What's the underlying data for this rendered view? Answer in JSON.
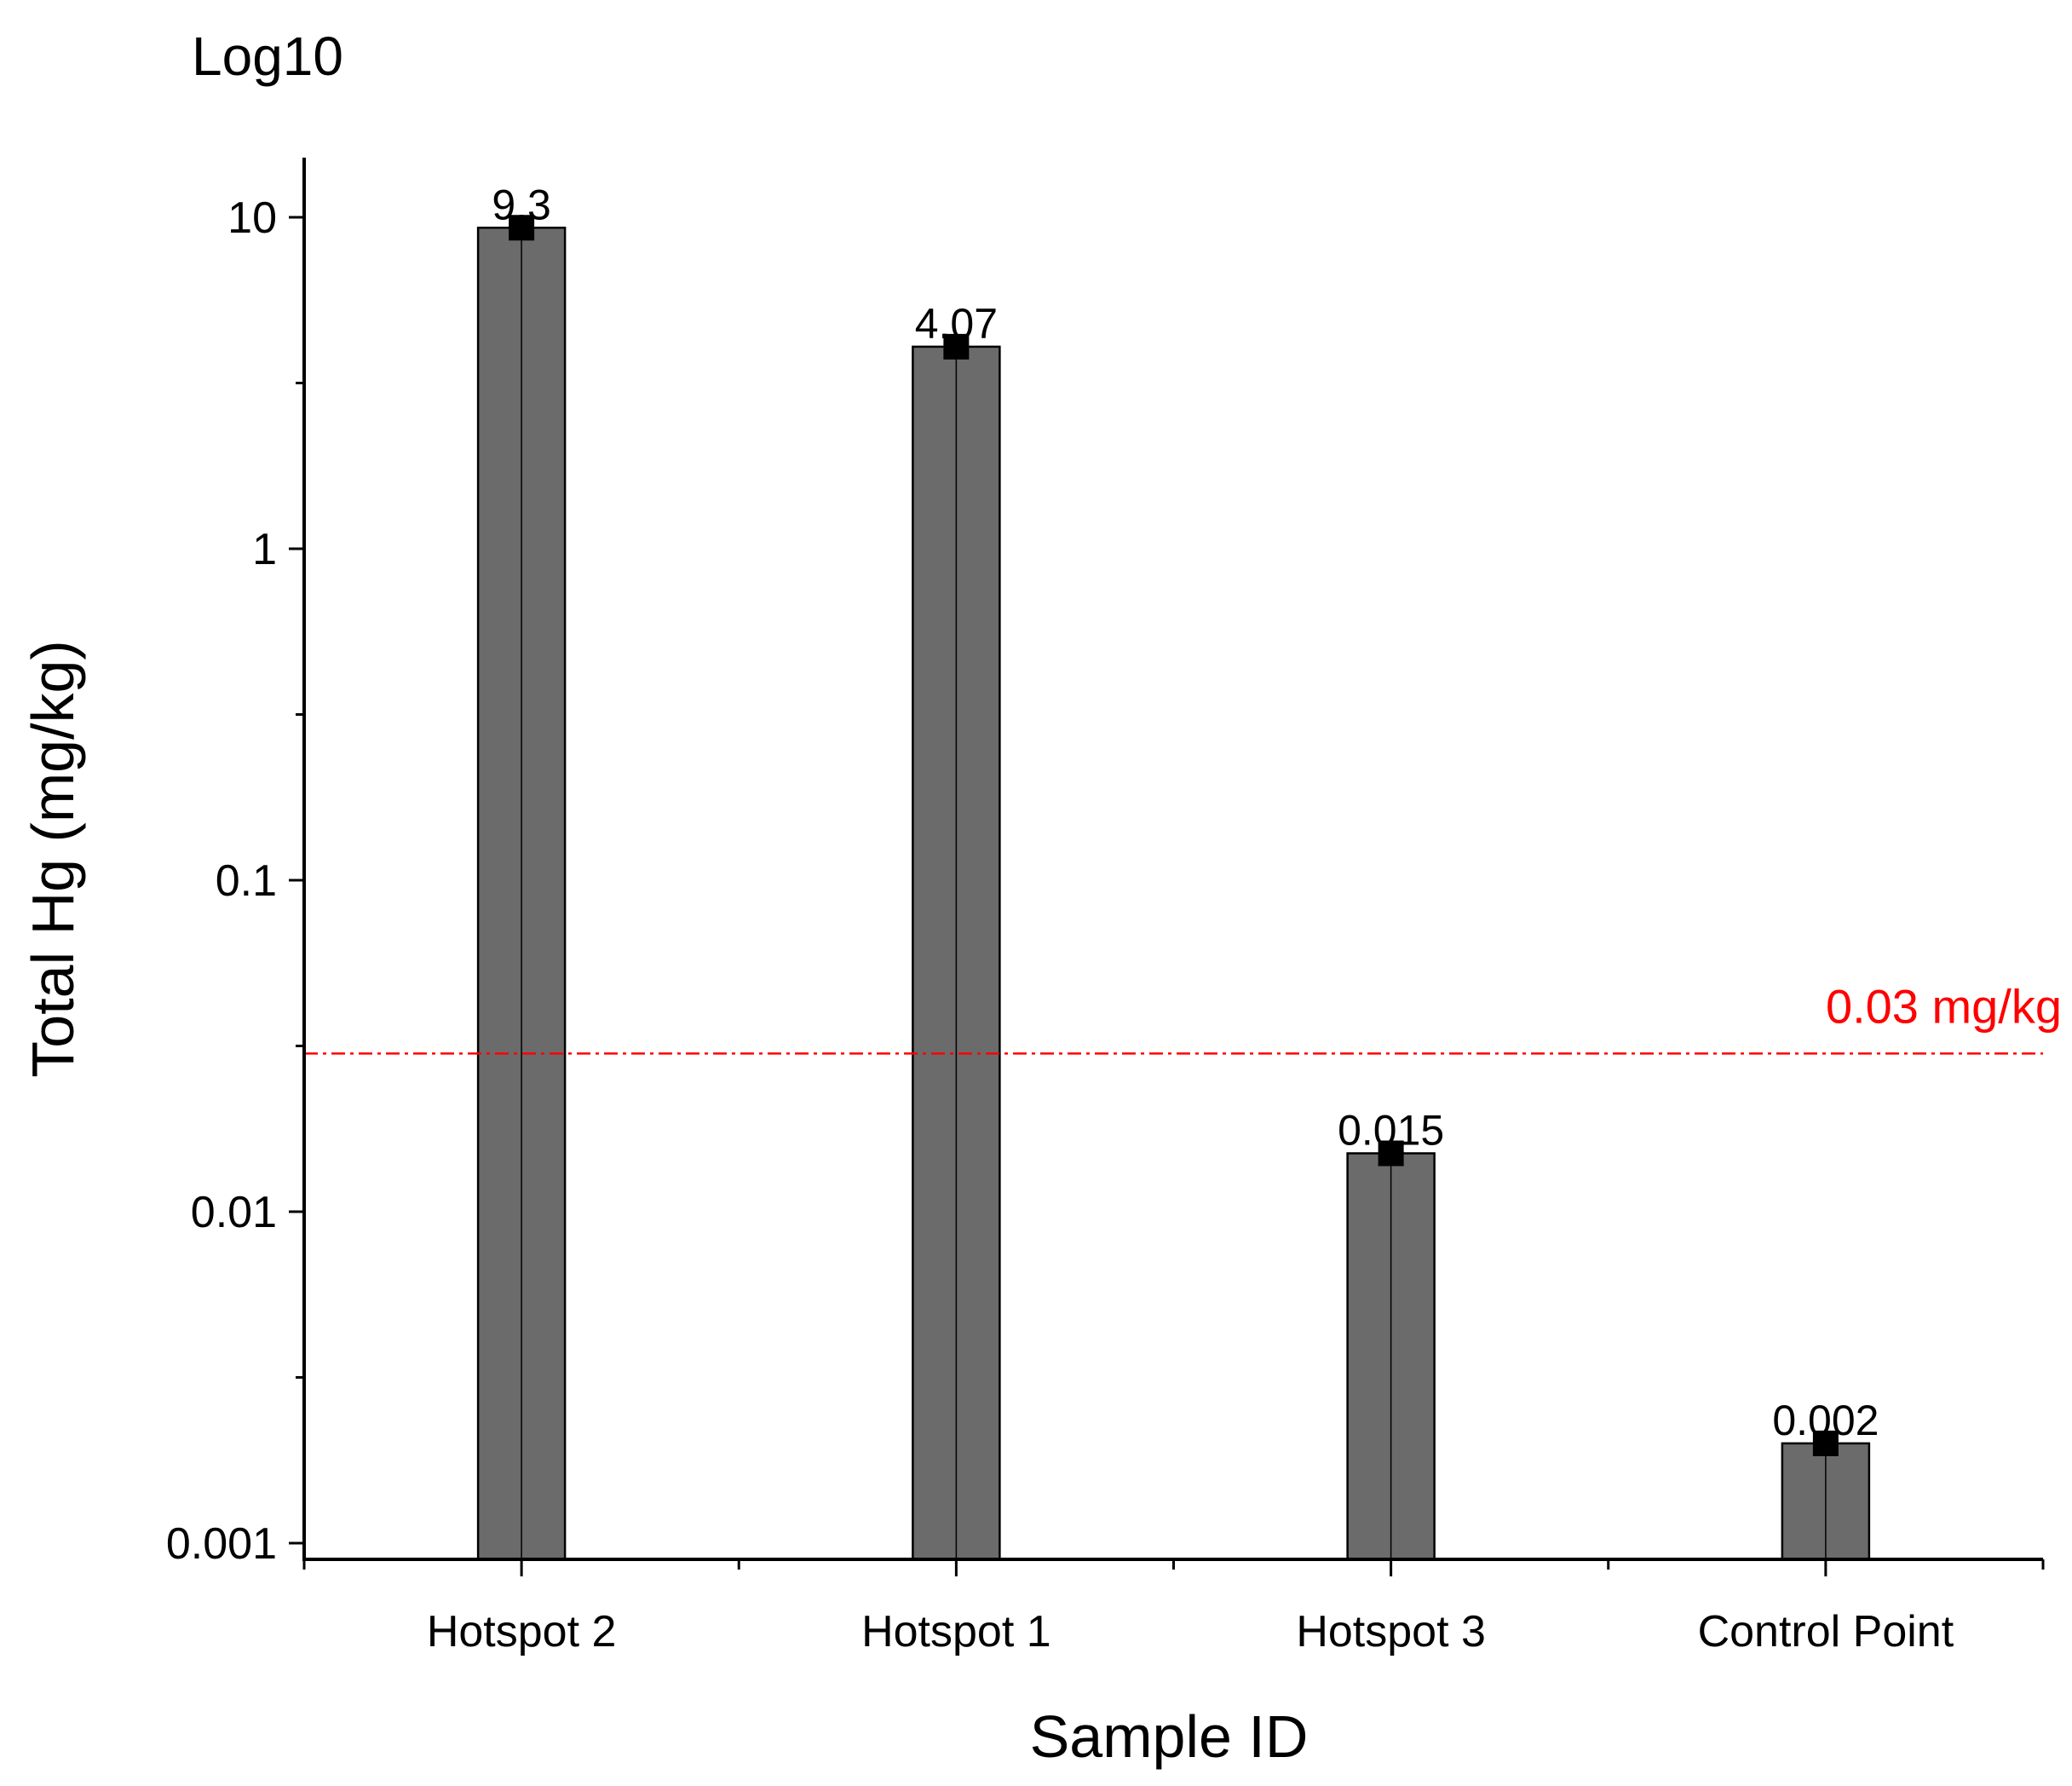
{
  "chart_data": {
    "type": "bar",
    "scale_note": "Log10",
    "xlabel": "Sample ID",
    "ylabel": "Total Hg (mg/kg)",
    "yscale": "log10",
    "ylim": [
      0.00088,
      15
    ],
    "yticks": [
      {
        "value": 0.001,
        "label": "0.001"
      },
      {
        "value": 0.01,
        "label": "0.01"
      },
      {
        "value": 0.1,
        "label": "0.1"
      },
      {
        "value": 1,
        "label": "1"
      },
      {
        "value": 10,
        "label": "10"
      }
    ],
    "categories": [
      "Hotspot 2",
      "Hotspot 1",
      "Hotspot 3",
      "Control Point"
    ],
    "values": [
      9.3,
      4.07,
      0.015,
      0.002
    ],
    "value_labels": [
      "9.3",
      "4.07",
      "0.015",
      "0.002"
    ],
    "reference_line": {
      "value": 0.03,
      "label": "0.03 mg/kg",
      "color": "#ff0000",
      "style": "dash-dot"
    },
    "bar_color": "#6b6b6b",
    "marker_color": "#000000"
  }
}
